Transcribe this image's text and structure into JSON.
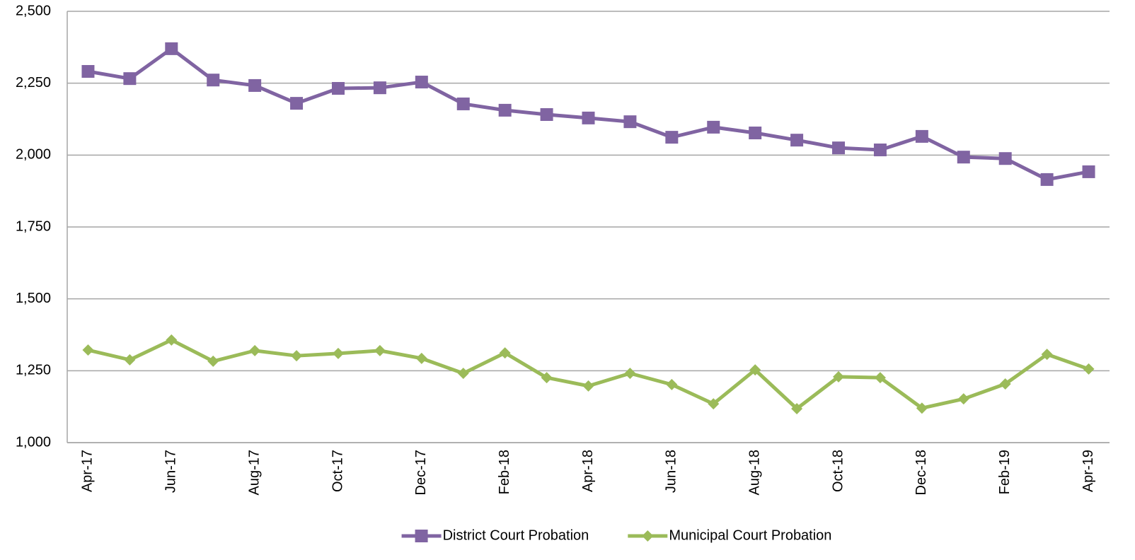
{
  "chart_data": {
    "type": "line",
    "categories": [
      "Apr-17",
      null,
      "Jun-17",
      null,
      "Aug-17",
      null,
      "Oct-17",
      null,
      "Dec-17",
      null,
      "Feb-18",
      null,
      "Apr-18",
      null,
      "Jun-18",
      null,
      "Aug-18",
      null,
      "Oct-18",
      null,
      "Dec-18",
      null,
      "Feb-19",
      null,
      "Apr-19"
    ],
    "series": [
      {
        "name": "District Court Probation",
        "color": "#8064a2",
        "marker": "square",
        "values": [
          2291,
          2266,
          2370,
          2261,
          2242,
          2180,
          2232,
          2234,
          2254,
          2178,
          2156,
          2141,
          2129,
          2116,
          2062,
          2097,
          2077,
          2052,
          2025,
          2018,
          2065,
          1993,
          1988,
          1915,
          1942
        ]
      },
      {
        "name": "Municipal Court Probation",
        "color": "#9bbb59",
        "marker": "diamond",
        "values": [
          1322,
          1288,
          1357,
          1283,
          1320,
          1302,
          1310,
          1320,
          1293,
          1241,
          1312,
          1226,
          1197,
          1241,
          1202,
          1135,
          1253,
          1118,
          1229,
          1226,
          1120,
          1152,
          1204,
          1307,
          1256
        ]
      }
    ],
    "ylim": [
      1000,
      2500
    ],
    "yticks": [
      {
        "value": 1000,
        "label": "1,000"
      },
      {
        "value": 1250,
        "label": "1,250"
      },
      {
        "value": 1500,
        "label": "1,500"
      },
      {
        "value": 1750,
        "label": "1,750"
      },
      {
        "value": 2000,
        "label": "2,000"
      },
      {
        "value": 2250,
        "label": "2,250"
      },
      {
        "value": 2500,
        "label": "2,500"
      }
    ],
    "grid": true,
    "legend": "bottom"
  }
}
